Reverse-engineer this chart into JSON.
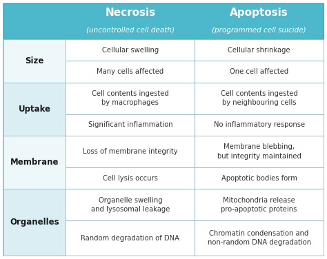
{
  "header_bg": "#4db8cc",
  "row_bg_colors": [
    "#eef8fb",
    "#daeef4",
    "#eef8fb",
    "#daeef4"
  ],
  "cell_bg": "#ffffff",
  "text_color": "#333333",
  "header_text_color": "#ffffff",
  "border_color": "#b0cdd4",
  "header_necrosis": "Necrosis",
  "header_necrosis_sub": "(uncontrolled cell death)",
  "header_apoptosis": "Apoptosis",
  "header_apoptosis_sub": "(programmed cell suicide)",
  "categories": [
    "Size",
    "Uptake",
    "Membrane",
    "Organelles"
  ],
  "necrosis_rows": [
    [
      "Cellular swelling",
      "Many cells affected"
    ],
    [
      "Cell contents ingested\nby macrophages",
      "Significant inflammation"
    ],
    [
      "Loss of membrane integrity",
      "Cell lysis occurs"
    ],
    [
      "Organelle swelling\nand lysosomal leakage",
      "Random degradation of DNA"
    ]
  ],
  "apoptosis_rows": [
    [
      "Cellular shrinkage",
      "One cell affected"
    ],
    [
      "Cell contents ingested\nby neighbouring cells",
      "No inflammatory response"
    ],
    [
      "Membrane blebbing,\nbut integrity maintained",
      "Apoptotic bodies form"
    ],
    [
      "Mitochondria release\npro-apoptotic proteins",
      "Chromatin condensation and\nnon-random DNA degradation"
    ]
  ],
  "figw": 4.74,
  "figh": 3.76,
  "dpi": 100
}
